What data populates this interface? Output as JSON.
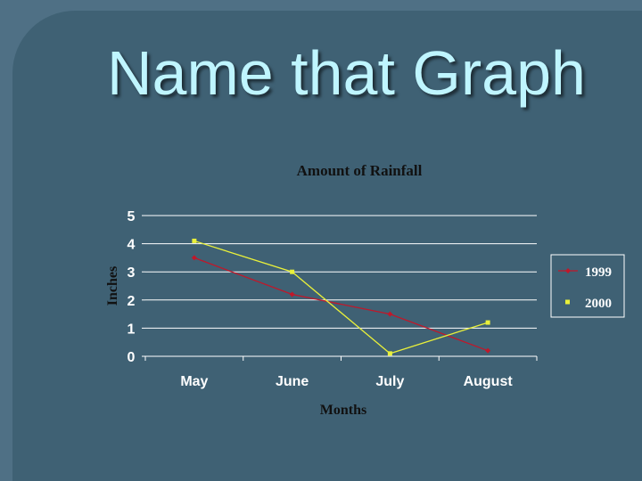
{
  "slide": {
    "title": "Name that Graph"
  },
  "chart_data": {
    "type": "line",
    "title": "Amount of Rainfall",
    "xlabel": "Months",
    "ylabel": "Inches",
    "categories": [
      "May",
      "June",
      "July",
      "August"
    ],
    "yticks": [
      "0",
      "1",
      "2",
      "3",
      "4",
      "5"
    ],
    "ylim": [
      0,
      5
    ],
    "grid": "horizontal",
    "legend_position": "right",
    "series": [
      {
        "name": "1999",
        "values": [
          3.5,
          2.2,
          1.5,
          0.2
        ],
        "color": "#c0182a",
        "marker": "diamond"
      },
      {
        "name": "2000",
        "values": [
          4.1,
          3.0,
          0.1,
          1.2
        ],
        "color": "#e9f03a",
        "marker": "square"
      }
    ],
    "colors": {
      "text_light": "#ffffff",
      "text_dark": "#111111",
      "grid": "#ffffff"
    }
  }
}
